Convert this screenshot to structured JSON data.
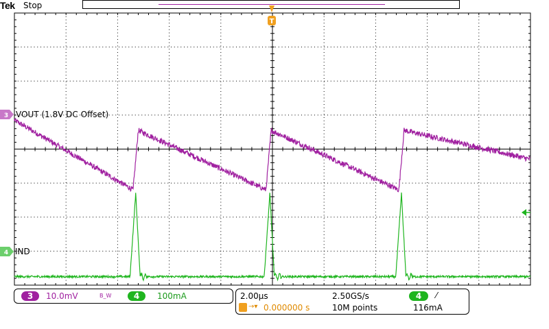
{
  "header": {
    "brand": "Tek",
    "status": "Stop"
  },
  "colors": {
    "ch3": "#a020a0",
    "ch4": "#1fb51f",
    "trigger": "#f0a020",
    "grid": "#000000"
  },
  "chart_data": {
    "type": "line",
    "grid": true,
    "divisions": {
      "horizontal": 10,
      "vertical": 8
    },
    "series": [
      {
        "name": "VOUT (1.8V DC Offset)",
        "channel": "3",
        "marker_label": "3",
        "scale": "10.0mV",
        "coupling": "BW",
        "pattern": "sawtooth",
        "period_us": 5.15,
        "ramp_start_us": [
          0,
          4.8,
          9.95,
          15.1
        ],
        "ramp_end_us": [
          4.6,
          9.75,
          14.9,
          20
        ],
        "low_div": -1.2,
        "high_div": 0.55,
        "noise_div": 0.08
      },
      {
        "name": "IND",
        "channel": "4",
        "marker_label": "4",
        "scale": "100mA",
        "pattern": "pulse",
        "pulse_times_us": [
          4.7,
          9.9,
          15.0
        ],
        "baseline_div": -3.75,
        "peak_div": -1.3,
        "noise_div": 0.03
      }
    ],
    "x_range_us": [
      0,
      20
    ],
    "y_range_div": [
      -4,
      4
    ]
  },
  "readouts": {
    "ch3_badge": "3",
    "ch3_scale": "10.0mV",
    "ch3_bw": "B_W",
    "ch4_badge": "4",
    "ch4_scale": "100mA",
    "timebase": "2.00µs",
    "sample_rate": "2.50GS/s",
    "trigger_delay": "0.000000 s",
    "record_length": "10M points",
    "trigger_badge": "4",
    "trigger_slope": "⁄",
    "trigger_level": "116mA"
  },
  "trace_labels": {
    "ch3": "VOUT (1.8V DC Offset)",
    "ch4": "IND",
    "trigger_marker": "T"
  }
}
